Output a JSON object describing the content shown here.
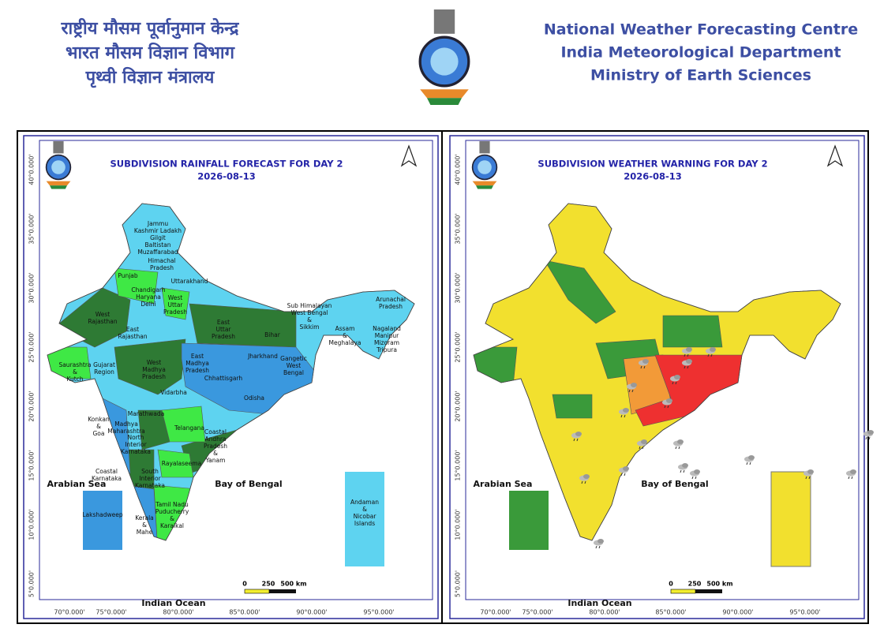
{
  "header": {
    "hindi": [
      "राष्ट्रीय मौसम पूर्वानुमान केन्द्र",
      "भारत मौसम विज्ञान विभाग",
      "पृथ्वी विज्ञान मंत्रालय"
    ],
    "english": [
      "National Weather Forecasting Centre",
      "India Meteorological Department",
      "Ministry of Earth Sciences"
    ]
  },
  "panels": [
    {
      "title": "SUBDIVISION RAINFALL FORECAST FOR DAY 2",
      "date": "2026-08-13",
      "seas": [
        "Arabian Sea",
        "Bay of Bengal",
        "Indian Ocean"
      ],
      "scale": [
        "0",
        "250",
        "500 km"
      ],
      "xlabels": [
        "70°0.000'",
        "75°0.000'",
        "80°0.000'",
        "85°0.000'",
        "90°0.000'",
        "95°0.000'"
      ],
      "ylabels": [
        "40°0.000'",
        "35°0.000'",
        "30°0.000'",
        "25°0.000'",
        "20°0.000'",
        "15°0.000'",
        "10°0.000'",
        "5°0.000'"
      ],
      "regions": [
        [
          "Jammu",
          "Kashmir Ladakh",
          "Gilgit",
          "Baltistan",
          "Muzaffarabad"
        ],
        [
          "Himachal",
          "Pradesh"
        ],
        [
          "Punjab"
        ],
        [
          "Uttarakhand"
        ],
        [
          "Chandigarh",
          "Haryana",
          "Delhi"
        ],
        [
          "West",
          "Uttar",
          "Pradesh"
        ],
        [
          "West",
          "Rajasthan"
        ],
        [
          "East",
          "Uttar",
          "Pradesh"
        ],
        [
          "Bihar"
        ],
        [
          "Sub Himalayan",
          "West Bengal",
          "&",
          "Sikkim"
        ],
        [
          "Arunachal",
          "Pradesh"
        ],
        [
          "Assam",
          "&",
          "Meghalaya"
        ],
        [
          "Nagaland",
          "Manipur",
          "Mizoram",
          "Tripura"
        ],
        [
          "East",
          "Rajasthan"
        ],
        [
          "Jharkhand"
        ],
        [
          "Gangetic",
          "West",
          "Bengal"
        ],
        [
          "East",
          "Madhya",
          "Pradesh"
        ],
        [
          "West",
          "Madhya",
          "Pradesh"
        ],
        [
          "Gujarat",
          "Region"
        ],
        [
          "Saurashtra",
          "&",
          "Kutch"
        ],
        [
          "Chhattisgarh"
        ],
        [
          "Vidarbha"
        ],
        [
          "Odisha"
        ],
        [
          "Marathwada"
        ],
        [
          "Konkan",
          "&",
          "Goa"
        ],
        [
          "Madhya",
          "Maharashtra"
        ],
        [
          "Telangana"
        ],
        [
          "North",
          "Interior",
          "Karnataka"
        ],
        [
          "Coastal",
          "Andhra",
          "Pradesh",
          "&",
          "Yanam"
        ],
        [
          "Rayalaseema"
        ],
        [
          "Coastal",
          "Karnataka"
        ],
        [
          "South",
          "Interior",
          "Karnataka"
        ],
        [
          "Tamil Nadu",
          "Puducherry",
          "&",
          "Karaikal"
        ],
        [
          "Kerala",
          "&",
          "Mahe"
        ],
        [
          "Lakshadweep"
        ],
        [
          "Andaman",
          "&",
          "Nicobar",
          "Islands"
        ]
      ]
    },
    {
      "title": "SUBDIVISION WEATHER WARNING FOR DAY 2",
      "date": "2026-08-13",
      "seas": [
        "Arabian Sea",
        "Bay of Bengal",
        "Indian Ocean"
      ],
      "scale": [
        "0",
        "250",
        "500 km"
      ],
      "xlabels": [
        "70°0.000'",
        "75°0.000'",
        "80°0.000'",
        "85°0.000'",
        "90°0.000'",
        "95°0.000'"
      ],
      "ylabels": [
        "40°0.000'",
        "35°0.000'",
        "30°0.000'",
        "25°0.000'",
        "20°0.000'",
        "15°0.000'",
        "10°0.000'",
        "5°0.000'"
      ]
    }
  ]
}
